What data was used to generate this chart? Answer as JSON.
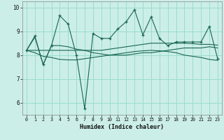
{
  "xlabel": "Humidex (Indice chaleur)",
  "xlim": [
    -0.5,
    23.5
  ],
  "ylim": [
    5.5,
    10.25
  ],
  "yticks": [
    6,
    7,
    8,
    9,
    10
  ],
  "xticks": [
    0,
    1,
    2,
    3,
    4,
    5,
    6,
    7,
    8,
    9,
    10,
    11,
    12,
    13,
    14,
    15,
    16,
    17,
    18,
    19,
    20,
    21,
    22,
    23
  ],
  "bg_color": "#cceee8",
  "grid_color": "#99ddcc",
  "line_color": "#1a6655",
  "lines": [
    {
      "x": [
        0,
        1,
        2,
        3,
        4,
        5,
        6,
        7,
        8,
        9,
        10,
        11,
        12,
        13,
        14,
        15,
        16,
        17,
        18,
        19,
        20,
        21,
        22,
        23
      ],
      "y": [
        8.2,
        8.8,
        7.6,
        8.4,
        9.65,
        9.3,
        8.0,
        5.75,
        8.9,
        8.7,
        8.7,
        9.1,
        9.4,
        9.9,
        8.85,
        9.6,
        8.7,
        8.4,
        8.55,
        8.55,
        8.55,
        8.55,
        9.2,
        7.85
      ],
      "marker": "+"
    },
    {
      "x": [
        0,
        1,
        2,
        3,
        4,
        5,
        6,
        7,
        8,
        9,
        10,
        11,
        12,
        13,
        14,
        15,
        16,
        17,
        18,
        19,
        20,
        21,
        22,
        23
      ],
      "y": [
        8.2,
        8.75,
        7.6,
        8.4,
        8.4,
        8.35,
        8.25,
        8.2,
        8.1,
        8.05,
        8.0,
        8.0,
        8.0,
        8.05,
        8.1,
        8.1,
        8.15,
        8.2,
        8.25,
        8.3,
        8.3,
        8.3,
        8.35,
        8.3
      ],
      "marker": null
    },
    {
      "x": [
        0,
        1,
        2,
        3,
        4,
        5,
        6,
        7,
        8,
        9,
        10,
        11,
        12,
        13,
        14,
        15,
        16,
        17,
        18,
        19,
        20,
        21,
        22,
        23
      ],
      "y": [
        8.2,
        8.2,
        8.2,
        8.2,
        8.2,
        8.2,
        8.2,
        8.2,
        8.2,
        8.2,
        8.25,
        8.3,
        8.35,
        8.4,
        8.45,
        8.5,
        8.5,
        8.5,
        8.5,
        8.5,
        8.48,
        8.45,
        8.45,
        8.42
      ],
      "marker": null
    },
    {
      "x": [
        0,
        1,
        2,
        3,
        4,
        5,
        6,
        7,
        8,
        9,
        10,
        11,
        12,
        13,
        14,
        15,
        16,
        17,
        18,
        19,
        20,
        21,
        22,
        23
      ],
      "y": [
        8.2,
        8.1,
        7.95,
        7.9,
        7.82,
        7.8,
        7.8,
        7.85,
        7.9,
        7.95,
        8.0,
        8.05,
        8.1,
        8.15,
        8.18,
        8.2,
        8.18,
        8.15,
        8.1,
        8.0,
        7.95,
        7.9,
        7.82,
        7.78
      ],
      "marker": null
    }
  ]
}
